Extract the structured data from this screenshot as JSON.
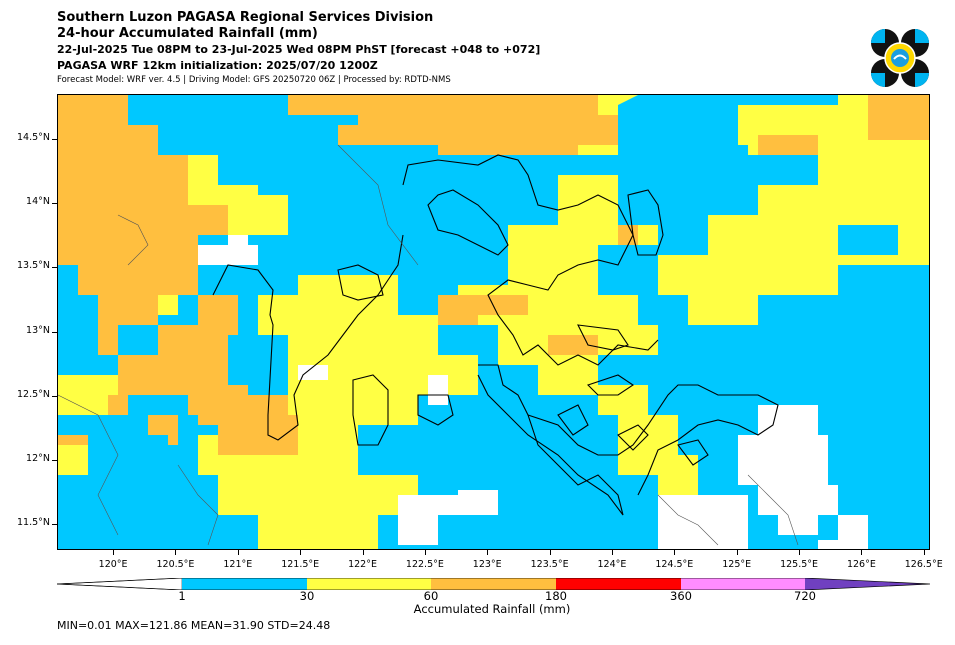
{
  "header": {
    "line1": "Southern Luzon PAGASA Regional Services Division",
    "line2": "24-hour Accumulated Rainfall (mm)",
    "line3": "22-Jul-2025 Tue 08PM to 23-Jul-2025 Wed 08PM PhST [forecast +048 to +072]",
    "line4": "PAGASA WRF 12km initialization: 2025/07/20 1200Z",
    "line5": "Forecast Model: WRF ver. 4.5 | Driving Model: GFS 20250720 06Z | Processed by: RDTD-NMS"
  },
  "logo": {
    "icon": "pagasa-logo"
  },
  "map": {
    "x_ticks": [
      "120°E",
      "120.5°E",
      "121°E",
      "121.5°E",
      "122°E",
      "122.5°E",
      "123°E",
      "123.5°E",
      "124°E",
      "124.5°E",
      "125°E",
      "125.5°E",
      "126°E",
      "126.5°E"
    ],
    "y_ticks": [
      "14.5°N",
      "14°N",
      "13.5°N",
      "13°N",
      "12.5°N",
      "12°N",
      "11.5°N"
    ],
    "lon_range": [
      119.55,
      126.55
    ],
    "lat_range": [
      11.3,
      14.85
    ]
  },
  "colorbar": {
    "ticks": [
      "1",
      "30",
      "60",
      "180",
      "360",
      "720"
    ],
    "label": "Accumulated Rainfall (mm)",
    "colors": {
      "below_1": "#ffffff",
      "1_30": "#00c8ff",
      "30_60": "#ffff44",
      "60_180": "#ffbf3f",
      "180_360": "#ff0000",
      "360_720": "#ff8cff",
      "above_720": "#7040c0"
    }
  },
  "stats": {
    "text": "MIN=0.01   MAX=121.86   MEAN=31.90   STD=24.48"
  }
}
